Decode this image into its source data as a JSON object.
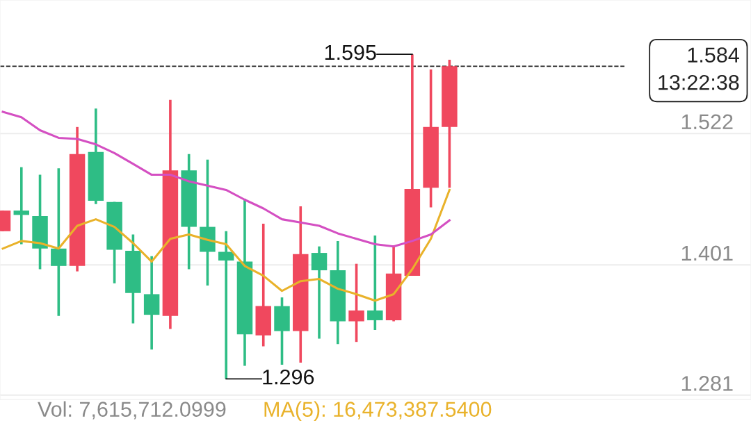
{
  "chart_data": {
    "type": "candlestick",
    "categories": [
      null,
      null,
      null,
      null,
      null,
      null,
      null,
      null,
      null,
      null,
      null,
      null,
      null,
      null,
      null,
      null,
      null,
      null,
      null,
      null,
      null,
      null,
      null,
      null,
      null
    ],
    "ohlc": [
      [
        1.432,
        1.451,
        1.432,
        1.451
      ],
      [
        1.451,
        1.491,
        1.42,
        1.447
      ],
      [
        1.446,
        1.484,
        1.397,
        1.416
      ],
      [
        1.416,
        1.49,
        1.354,
        1.4
      ],
      [
        1.4,
        1.528,
        1.395,
        1.503
      ],
      [
        1.505,
        1.545,
        1.457,
        1.46
      ],
      [
        1.459,
        1.459,
        1.384,
        1.415
      ],
      [
        1.414,
        1.429,
        1.347,
        1.375
      ],
      [
        1.374,
        1.409,
        1.323,
        1.355
      ],
      [
        1.354,
        1.553,
        1.342,
        1.488
      ],
      [
        1.488,
        1.503,
        1.397,
        1.436
      ],
      [
        1.436,
        1.498,
        1.382,
        1.413
      ],
      [
        1.413,
        1.432,
        1.296,
        1.405
      ],
      [
        1.404,
        1.462,
        1.308,
        1.337
      ],
      [
        1.336,
        1.439,
        1.326,
        1.363
      ],
      [
        1.363,
        1.371,
        1.309,
        1.34
      ],
      [
        1.34,
        1.455,
        1.311,
        1.411
      ],
      [
        1.412,
        1.418,
        1.333,
        1.396
      ],
      [
        1.396,
        1.423,
        1.328,
        1.349
      ],
      [
        1.349,
        1.402,
        1.33,
        1.359
      ],
      [
        1.359,
        1.428,
        1.341,
        1.35
      ],
      [
        1.35,
        1.419,
        1.349,
        1.393
      ],
      [
        1.391,
        1.595,
        1.391,
        1.471
      ],
      [
        1.472,
        1.581,
        1.454,
        1.528
      ],
      [
        1.528,
        1.59,
        1.472,
        1.584
      ]
    ],
    "colors": [
      "#f0485e",
      "#2ebd85",
      "#2ebd85",
      "#2ebd85",
      "#f0485e",
      "#2ebd85",
      "#2ebd85",
      "#2ebd85",
      "#2ebd85",
      "#f0485e",
      "#2ebd85",
      "#2ebd85",
      "#2ebd85",
      "#2ebd85",
      "#f0485e",
      "#2ebd85",
      "#f0485e",
      "#2ebd85",
      "#2ebd85",
      "#f0485e",
      "#2ebd85",
      "#f0485e",
      "#f0485e",
      "#f0485e",
      "#f0485e"
    ],
    "series": [
      {
        "type": "line",
        "color": "#e9b22a",
        "values": [
          1.416,
          1.423,
          1.421,
          1.416,
          1.437,
          1.443,
          1.436,
          1.421,
          1.404,
          1.425,
          1.429,
          1.424,
          1.42,
          1.4,
          1.391,
          1.377,
          1.386,
          1.388,
          1.379,
          1.374,
          1.368,
          1.374,
          1.397,
          1.425,
          1.47
        ]
      },
      {
        "type": "line",
        "color": "#d44fc2",
        "values": [
          1.542,
          1.537,
          1.525,
          1.518,
          1.517,
          1.512,
          1.504,
          1.494,
          1.484,
          1.484,
          1.478,
          1.474,
          1.47,
          1.461,
          1.453,
          1.443,
          1.44,
          1.437,
          1.43,
          1.425,
          1.42,
          1.418,
          1.423,
          1.429,
          1.442
        ]
      }
    ],
    "ylim": [
      1.277,
      1.645
    ],
    "yticks": [
      1.281,
      1.401,
      1.522
    ],
    "grid": "y",
    "ref_lines": [
      {
        "axis": "y",
        "value": 1.584,
        "label": "1.584\n13:22:38",
        "color": "#222222",
        "line_style": "dashed"
      }
    ],
    "annotations": [
      "1.595",
      "1.296",
      "Vol: 7,615,712.0999",
      "MA(5): 16,473,387.5400"
    ]
  }
}
